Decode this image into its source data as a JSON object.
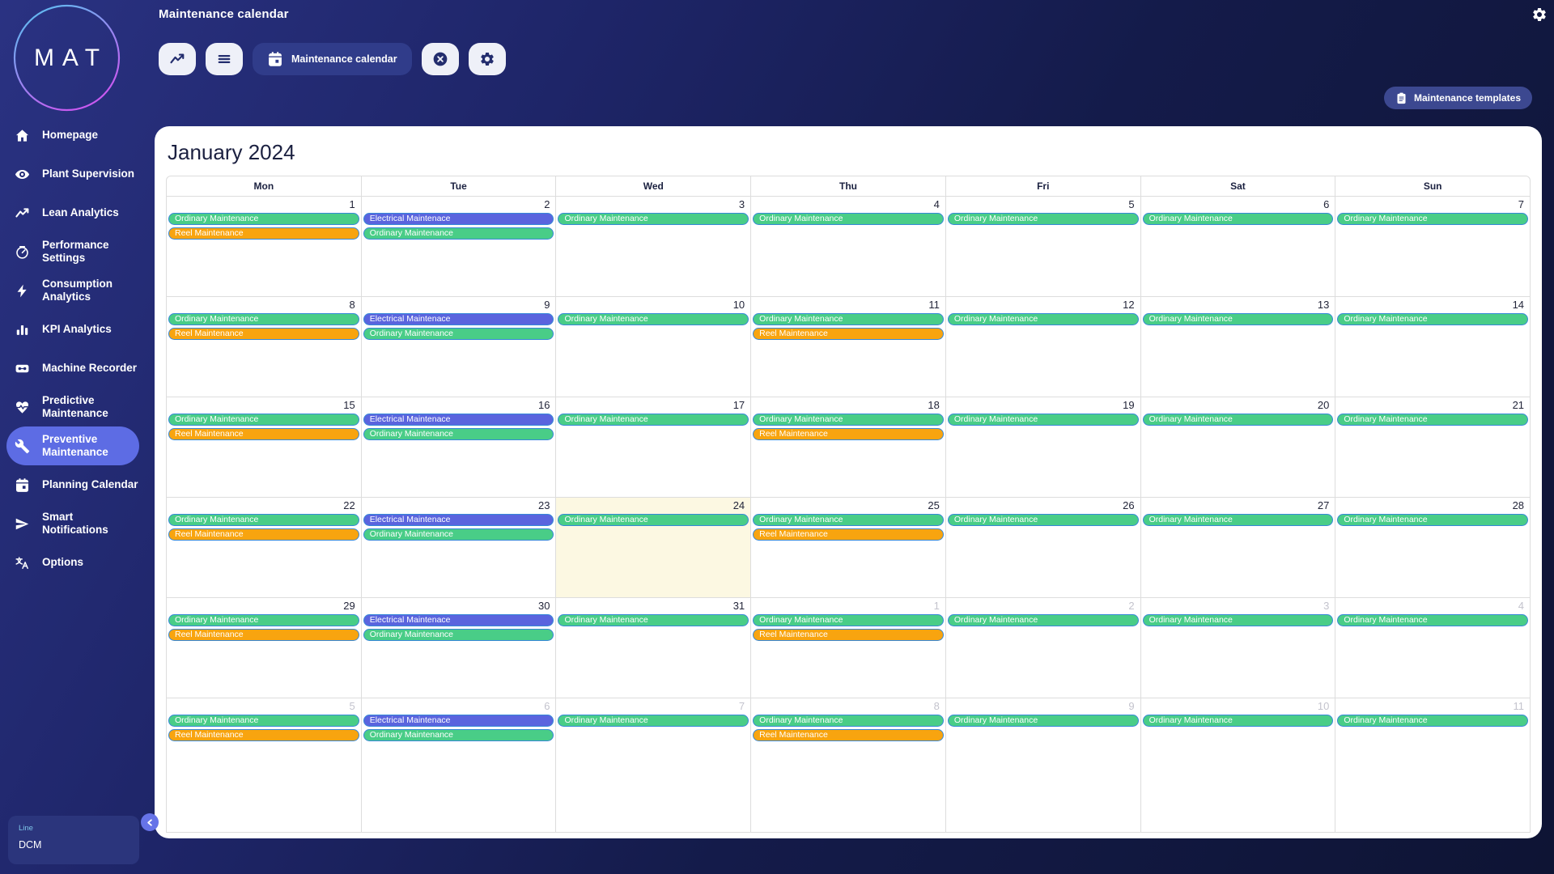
{
  "app": {
    "logo_text": "MAT",
    "page_title": "Maintenance calendar"
  },
  "colors": {
    "accent_active": "#5d6ce4",
    "today_bg": "#fcf8e2",
    "event_border": "#3788d8"
  },
  "toolbar": {
    "buttons": [
      {
        "name": "trend-button",
        "icon": "trend"
      },
      {
        "name": "menu-button",
        "icon": "menu"
      },
      {
        "name": "maintenance-calendar-button",
        "icon": "calendar-day",
        "label": "Maintenance calendar",
        "primary": true
      },
      {
        "name": "close-button",
        "icon": "close-circle"
      },
      {
        "name": "settings-button",
        "icon": "gear"
      }
    ],
    "templates_button_label": "Maintenance templates"
  },
  "sidebar": {
    "items": [
      {
        "label": "Homepage",
        "icon": "home"
      },
      {
        "label": "Plant Supervision",
        "icon": "eye"
      },
      {
        "label": "Lean Analytics",
        "icon": "trend"
      },
      {
        "label": "Performance Settings",
        "icon": "gauge"
      },
      {
        "label": "Consumption Analytics",
        "icon": "bolt"
      },
      {
        "label": "KPI Analytics",
        "icon": "bar-chart"
      },
      {
        "label": "Machine Recorder",
        "icon": "machine"
      },
      {
        "label": "Predictive Maintenance",
        "icon": "heart-pulse"
      },
      {
        "label": "Preventive Maintenance",
        "icon": "wrench",
        "active": true
      },
      {
        "label": "Planning Calendar",
        "icon": "calendar"
      },
      {
        "label": "Smart Notifications",
        "icon": "send"
      },
      {
        "label": "Options",
        "icon": "translate"
      }
    ],
    "footer": {
      "line_label": "Line",
      "line_value": "DCM"
    }
  },
  "calendar": {
    "title": "January 2024",
    "day_headers": [
      "Mon",
      "Tue",
      "Wed",
      "Thu",
      "Fri",
      "Sat",
      "Sun"
    ],
    "event_types": {
      "ordinary": {
        "label": "Ordinary Maintenance",
        "color": "#49cd87"
      },
      "electrical": {
        "label": "Electrical Maintenace",
        "color": "#5a64de"
      },
      "reel": {
        "label": "Reel Maintenance",
        "color": "#f8a40f"
      }
    },
    "weeks": [
      {
        "days": [
          {
            "num": "1",
            "events": [
              "ordinary",
              "reel"
            ]
          },
          {
            "num": "2",
            "events": [
              "electrical",
              "ordinary"
            ]
          },
          {
            "num": "3",
            "events": [
              "ordinary"
            ]
          },
          {
            "num": "4",
            "events": [
              "ordinary"
            ]
          },
          {
            "num": "5",
            "events": [
              "ordinary"
            ]
          },
          {
            "num": "6",
            "events": [
              "ordinary"
            ]
          },
          {
            "num": "7",
            "events": [
              "ordinary"
            ]
          }
        ]
      },
      {
        "days": [
          {
            "num": "8",
            "events": [
              "ordinary",
              "reel"
            ]
          },
          {
            "num": "9",
            "events": [
              "electrical",
              "ordinary"
            ]
          },
          {
            "num": "10",
            "events": [
              "ordinary"
            ]
          },
          {
            "num": "11",
            "events": [
              "ordinary",
              "reel"
            ]
          },
          {
            "num": "12",
            "events": [
              "ordinary"
            ]
          },
          {
            "num": "13",
            "events": [
              "ordinary"
            ]
          },
          {
            "num": "14",
            "events": [
              "ordinary"
            ]
          }
        ]
      },
      {
        "days": [
          {
            "num": "15",
            "events": [
              "ordinary",
              "reel"
            ]
          },
          {
            "num": "16",
            "events": [
              "electrical",
              "ordinary"
            ]
          },
          {
            "num": "17",
            "events": [
              "ordinary"
            ]
          },
          {
            "num": "18",
            "events": [
              "ordinary",
              "reel"
            ]
          },
          {
            "num": "19",
            "events": [
              "ordinary"
            ]
          },
          {
            "num": "20",
            "events": [
              "ordinary"
            ]
          },
          {
            "num": "21",
            "events": [
              "ordinary"
            ]
          }
        ]
      },
      {
        "days": [
          {
            "num": "22",
            "events": [
              "ordinary",
              "reel"
            ]
          },
          {
            "num": "23",
            "events": [
              "electrical",
              "ordinary"
            ]
          },
          {
            "num": "24",
            "today": true,
            "events": [
              "ordinary"
            ]
          },
          {
            "num": "25",
            "events": [
              "ordinary",
              "reel"
            ]
          },
          {
            "num": "26",
            "events": [
              "ordinary"
            ]
          },
          {
            "num": "27",
            "events": [
              "ordinary"
            ]
          },
          {
            "num": "28",
            "events": [
              "ordinary"
            ]
          }
        ]
      },
      {
        "days": [
          {
            "num": "29",
            "events": [
              "ordinary",
              "reel"
            ]
          },
          {
            "num": "30",
            "events": [
              "electrical",
              "ordinary"
            ]
          },
          {
            "num": "31",
            "events": [
              "ordinary"
            ]
          },
          {
            "num": "1",
            "other": true,
            "events": [
              "ordinary",
              "reel"
            ]
          },
          {
            "num": "2",
            "other": true,
            "events": [
              "ordinary"
            ]
          },
          {
            "num": "3",
            "other": true,
            "events": [
              "ordinary"
            ]
          },
          {
            "num": "4",
            "other": true,
            "events": [
              "ordinary"
            ]
          }
        ]
      },
      {
        "days": [
          {
            "num": "5",
            "other": true,
            "events": [
              "ordinary",
              "reel"
            ]
          },
          {
            "num": "6",
            "other": true,
            "events": [
              "electrical",
              "ordinary"
            ]
          },
          {
            "num": "7",
            "other": true,
            "events": [
              "ordinary"
            ]
          },
          {
            "num": "8",
            "other": true,
            "events": [
              "ordinary",
              "reel"
            ]
          },
          {
            "num": "9",
            "other": true,
            "events": [
              "ordinary"
            ]
          },
          {
            "num": "10",
            "other": true,
            "events": [
              "ordinary"
            ]
          },
          {
            "num": "11",
            "other": true,
            "events": [
              "ordinary"
            ]
          }
        ]
      }
    ]
  }
}
